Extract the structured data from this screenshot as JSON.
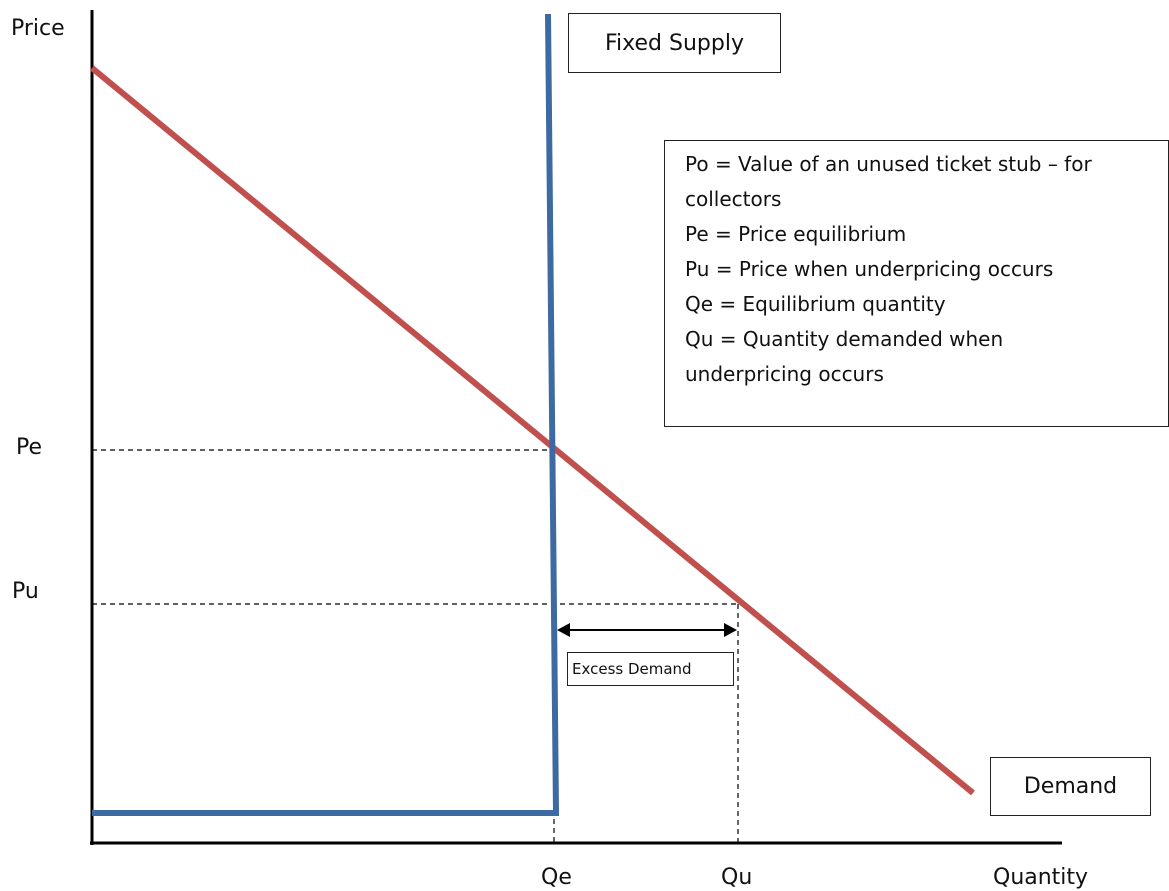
{
  "axes": {
    "y_label": "Price",
    "x_label": "Quantity"
  },
  "price_ticks": {
    "pe": "Pe",
    "pu": "Pu"
  },
  "quantity_ticks": {
    "qe": "Qe",
    "qu": "Qu"
  },
  "curves": {
    "supply_label": "Fixed Supply",
    "demand_label": "Demand",
    "supply_color": "#3d6aa3",
    "demand_color": "#c0504d"
  },
  "annotation": {
    "excess_demand_label": "Excess Demand"
  },
  "legend": {
    "lines": [
      "Po = Value of an unused ticket stub – for",
      "collectors",
      "Pe = Price equilibrium",
      "Pu = Price when underpricing occurs",
      "Qe = Equilibrium quantity",
      "Qu = Quantity demanded when",
      "underpricing occurs"
    ]
  }
}
